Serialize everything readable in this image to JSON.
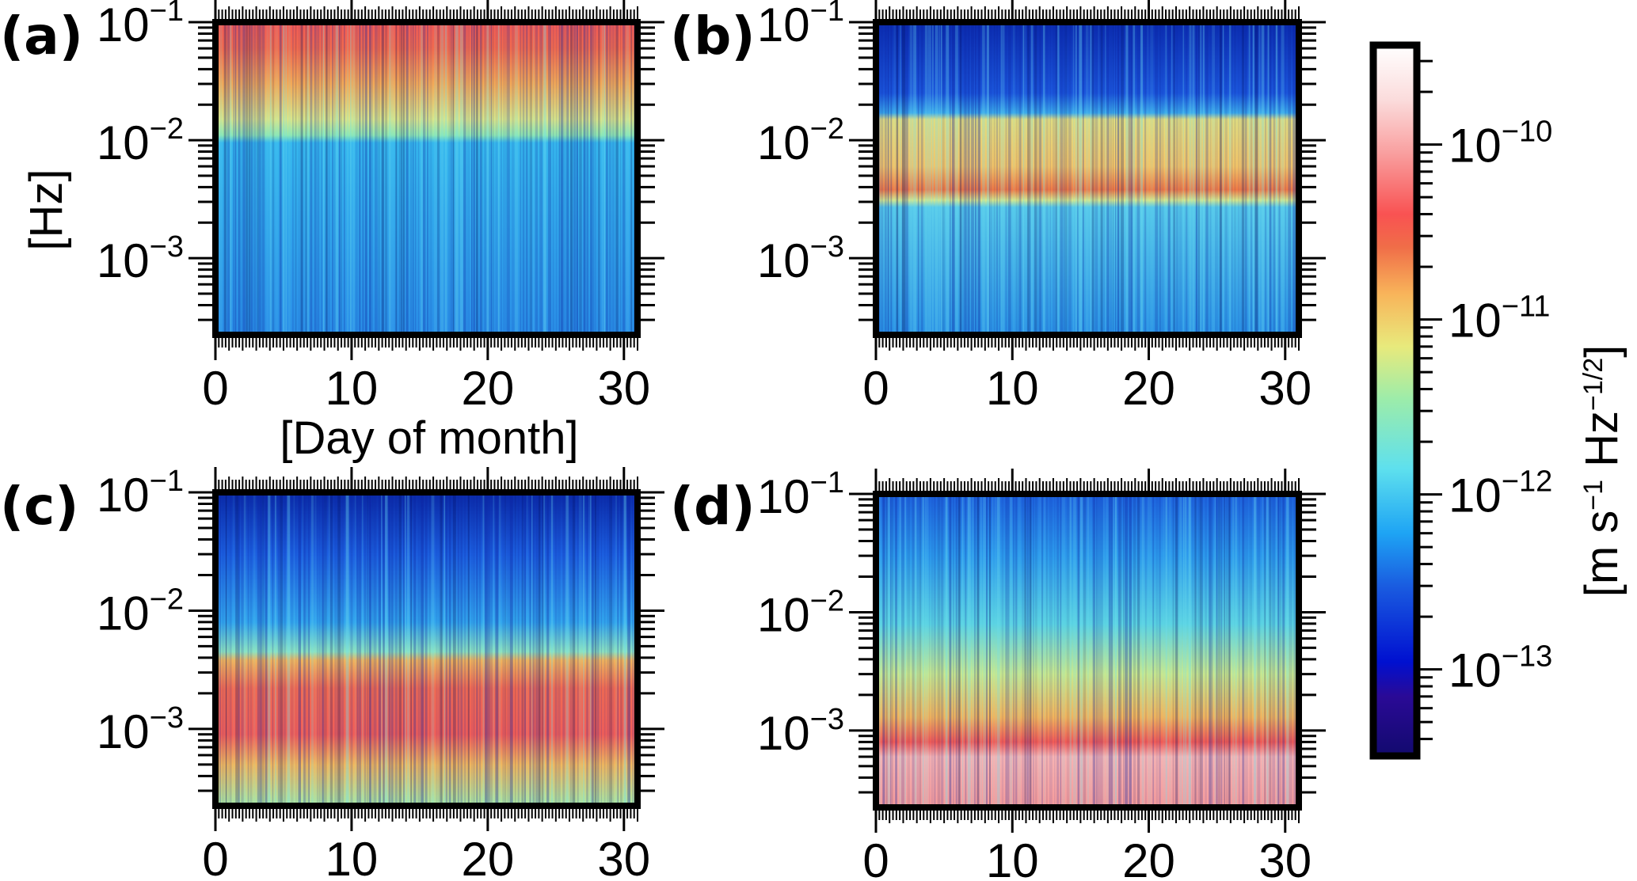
{
  "chart_data": [
    {
      "type": "heatmap",
      "panel_label": "(a)",
      "xlabel": "[Day of month]",
      "ylabel": "[Hz]",
      "xlim": [
        0,
        31
      ],
      "ylim": [
        0.000224,
        0.1
      ],
      "yscale": "log",
      "xticks": [
        "0",
        "10",
        "20",
        "30"
      ],
      "xtick_values": [
        0,
        10,
        20,
        30
      ],
      "yticks": [
        {
          "base": "10",
          "exp": "−1",
          "value": 0.1
        },
        {
          "base": "10",
          "exp": "−2",
          "value": 0.01
        },
        {
          "base": "10",
          "exp": "−3",
          "value": 0.001
        }
      ],
      "gradient": [
        {
          "hz": 0.1,
          "color": "#f25a55"
        },
        {
          "hz": 0.06,
          "color": "#f26a4e"
        },
        {
          "hz": 0.03,
          "color": "#f3a957"
        },
        {
          "hz": 0.015,
          "color": "#d8e58a"
        },
        {
          "hz": 0.011,
          "color": "#8fe8b3"
        },
        {
          "hz": 0.0095,
          "color": "#36b8ee"
        },
        {
          "hz": 0.000224,
          "color": "#2a8fe8"
        }
      ]
    },
    {
      "type": "heatmap",
      "panel_label": "(b)",
      "xlim": [
        0,
        31
      ],
      "ylim": [
        0.000224,
        0.1
      ],
      "yscale": "log",
      "xticks": [
        "0",
        "10",
        "20",
        "30"
      ],
      "xtick_values": [
        0,
        10,
        20,
        30
      ],
      "yticks": [
        {
          "base": "10",
          "exp": "−1",
          "value": 0.1
        },
        {
          "base": "10",
          "exp": "−2",
          "value": 0.01
        },
        {
          "base": "10",
          "exp": "−3",
          "value": 0.001
        }
      ],
      "gradient": [
        {
          "hz": 0.1,
          "color": "#0b2cb0"
        },
        {
          "hz": 0.025,
          "color": "#1b56dc"
        },
        {
          "hz": 0.017,
          "color": "#3aa8ea"
        },
        {
          "hz": 0.015,
          "color": "#e0dc80"
        },
        {
          "hz": 0.006,
          "color": "#f2c468"
        },
        {
          "hz": 0.0038,
          "color": "#f07a45"
        },
        {
          "hz": 0.0031,
          "color": "#d7e88c"
        },
        {
          "hz": 0.0027,
          "color": "#55c8ea"
        },
        {
          "hz": 0.000224,
          "color": "#2a92e6"
        }
      ]
    },
    {
      "type": "heatmap",
      "panel_label": "(c)",
      "xlim": [
        0,
        31
      ],
      "ylim": [
        0.000224,
        0.1
      ],
      "yscale": "log",
      "xticks": [
        "0",
        "10",
        "20",
        "30"
      ],
      "xtick_values": [
        0,
        10,
        20,
        30
      ],
      "yticks": [
        {
          "base": "10",
          "exp": "−1",
          "value": 0.1
        },
        {
          "base": "10",
          "exp": "−2",
          "value": 0.01
        },
        {
          "base": "10",
          "exp": "−3",
          "value": 0.001
        }
      ],
      "gradient": [
        {
          "hz": 0.1,
          "color": "#0a2aa8"
        },
        {
          "hz": 0.03,
          "color": "#1c5fe0"
        },
        {
          "hz": 0.008,
          "color": "#32a6ee"
        },
        {
          "hz": 0.0045,
          "color": "#8de3c0"
        },
        {
          "hz": 0.0038,
          "color": "#f2b45c"
        },
        {
          "hz": 0.0022,
          "color": "#f26a52"
        },
        {
          "hz": 0.0009,
          "color": "#f25e58"
        },
        {
          "hz": 0.0005,
          "color": "#f2b85e"
        },
        {
          "hz": 0.000224,
          "color": "#a8e8a6"
        }
      ]
    },
    {
      "type": "heatmap",
      "panel_label": "(d)",
      "xlim": [
        0,
        31
      ],
      "ylim": [
        0.000224,
        0.1
      ],
      "yscale": "log",
      "xticks": [
        "0",
        "10",
        "20",
        "30"
      ],
      "xtick_values": [
        0,
        10,
        20,
        30
      ],
      "yticks": [
        {
          "base": "10",
          "exp": "−1",
          "value": 0.1
        },
        {
          "base": "10",
          "exp": "−2",
          "value": 0.01
        },
        {
          "base": "10",
          "exp": "−3",
          "value": 0.001
        }
      ],
      "gradient": [
        {
          "hz": 0.1,
          "color": "#1d62de"
        },
        {
          "hz": 0.03,
          "color": "#2c9aec"
        },
        {
          "hz": 0.008,
          "color": "#5ad2e2"
        },
        {
          "hz": 0.003,
          "color": "#c8e88e"
        },
        {
          "hz": 0.0013,
          "color": "#f2b45c"
        },
        {
          "hz": 0.0008,
          "color": "#f25a55"
        },
        {
          "hz": 0.0006,
          "color": "#f7b3b3"
        },
        {
          "hz": 0.000224,
          "color": "#f59a9a"
        }
      ]
    }
  ],
  "colorbar": {
    "label": {
      "prefix": "[m s",
      "exp1": "−1",
      "mid": " Hz",
      "exp2": "−1/2",
      "suffix": "]"
    },
    "scale": "log",
    "range": [
      3.2e-14,
      3.7e-10
    ],
    "ticks": [
      {
        "base": "10",
        "exp": "−10",
        "value": 1e-10
      },
      {
        "base": "10",
        "exp": "−11",
        "value": 1e-11
      },
      {
        "base": "10",
        "exp": "−12",
        "value": 1e-12
      },
      {
        "base": "10",
        "exp": "−13",
        "value": 1e-13
      }
    ],
    "colormap": [
      {
        "value": 3.2e-14,
        "color": "#120a6e"
      },
      {
        "value": 7e-14,
        "color": "#2a0a96"
      },
      {
        "value": 1.1e-13,
        "color": "#0010d0"
      },
      {
        "value": 3e-13,
        "color": "#1a5ce0"
      },
      {
        "value": 6e-13,
        "color": "#1ea4f4"
      },
      {
        "value": 1.4e-12,
        "color": "#5ee0ee"
      },
      {
        "value": 3.5e-12,
        "color": "#9cecaa"
      },
      {
        "value": 7e-12,
        "color": "#e8ea7c"
      },
      {
        "value": 1.4e-11,
        "color": "#f8b45a"
      },
      {
        "value": 2.6e-11,
        "color": "#f06d48"
      },
      {
        "value": 4e-11,
        "color": "#f95252"
      },
      {
        "value": 9e-11,
        "color": "#f9a0a0"
      },
      {
        "value": 1.8e-10,
        "color": "#fbdcdc"
      },
      {
        "value": 3.7e-10,
        "color": "#ffffff"
      }
    ]
  }
}
